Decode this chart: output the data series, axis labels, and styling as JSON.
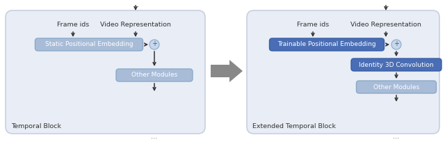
{
  "box_light_color": "#a8bcd8",
  "box_light_edge": "#8aaac8",
  "box_dark_color": "#4a6eb5",
  "box_dark_edge": "#3a5ea5",
  "box_light_text": "#ffffff",
  "box_dark_text": "#ffffff",
  "plus_circle_fc": "#c8d8ec",
  "plus_circle_ec": "#8aaac8",
  "panel_bg": "#e8edf6",
  "panel_edge": "#c8d0e0",
  "arrow_color": "#333333",
  "gray_arrow_color": "#888888",
  "label_color": "#333333",
  "dots_color": "#666666",
  "left_panel": {
    "label": "Temporal Block",
    "frame_ids_text": "Frame ids",
    "video_rep_text": "Video Representation",
    "embed_box_text": "Static Positional Embedding",
    "embed_box_dark": false,
    "other_modules_text": "Other Modules"
  },
  "right_panel": {
    "label": "Extended Temporal Block",
    "frame_ids_text": "Frame ids",
    "video_rep_text": "Video Representation",
    "embed_box_text": "Trainable Positional Embedding",
    "embed_box_dark": true,
    "identity_box_text": "Identity 3D Convolution",
    "other_modules_text": "Other Modules"
  }
}
